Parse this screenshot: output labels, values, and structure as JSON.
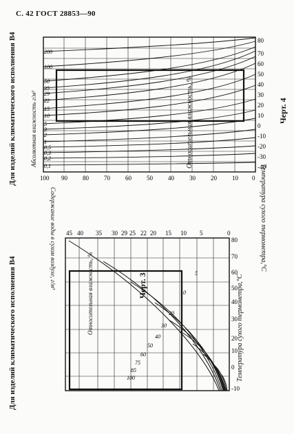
{
  "header": {
    "page_ref": "С. 42 ГОСТ 28853—90"
  },
  "left_chart": {
    "side_title": "Для изделий климатического исполнения В4",
    "caption": "Черт. 3",
    "x_axis_label": "Температура сухого термометра,°C",
    "x_ticks": [
      "-10",
      "0",
      "10",
      "20",
      "30",
      "40",
      "50",
      "60",
      "70",
      "80"
    ],
    "rh_axis_label": "Относительная влажность, %",
    "rh_curve_labels": [
      "5",
      "10",
      "20",
      "30",
      "40",
      "50",
      "60",
      "75",
      "85",
      "100"
    ],
    "moisture_axis_label": "Содержание воды в сухом воздухе, г/м³",
    "moisture_ticks": [
      "45",
      "40",
      "35",
      "30",
      "29",
      "25",
      "22",
      "20",
      "15",
      "10",
      "5",
      "0"
    ]
  },
  "right_chart": {
    "side_title": "Для изделий климатического исполнения В4",
    "caption": "Черт. 4",
    "x_axis_label": "Температура сухого термометра,°C",
    "x_ticks": [
      "-40",
      "-30",
      "-20",
      "-10",
      "0",
      "10",
      "20",
      "30",
      "40",
      "50",
      "60",
      "70",
      "80"
    ],
    "y_axis_label": "Относительная влажность, %",
    "y_ticks": [
      "100",
      "90",
      "80",
      "70",
      "60",
      "50",
      "40",
      "30",
      "20",
      "10",
      "0"
    ],
    "curve_axis_label": "Абсолютная влажность г/м³",
    "curve_labels": [
      "200",
      "100",
      "50",
      "35",
      "29",
      "22",
      "15",
      "10",
      "5",
      "3",
      "2",
      "1",
      "0,5",
      "0,3",
      "0,2",
      "0,1"
    ]
  }
}
